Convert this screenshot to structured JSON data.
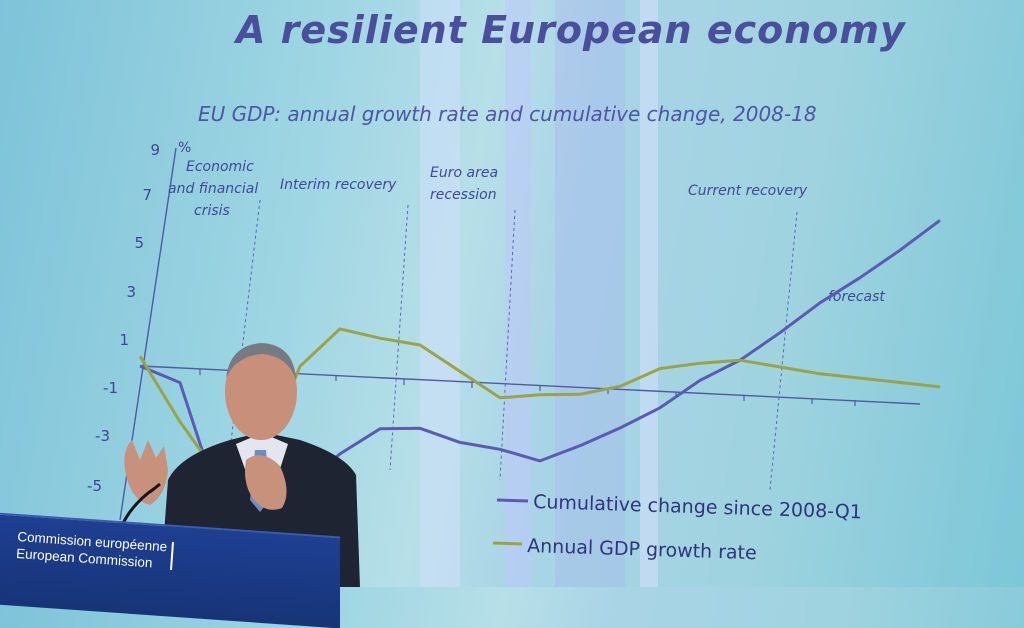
{
  "slide": {
    "title": "A resilient European economy",
    "subtitle": "EU GDP: annual growth rate and cumulative change, 2008-18"
  },
  "chart_data": {
    "type": "line",
    "ylabel": "%",
    "y_ticks": [
      "9",
      "7",
      "5",
      "3",
      "1",
      "-1",
      "-3",
      "-5"
    ],
    "annotations": [
      "Economic and financial crisis",
      "Interim recovery",
      "Euro area recession",
      "Current recovery",
      "forecast"
    ],
    "series": [
      {
        "name": "Cumulative change since 2008-Q1",
        "color": "#5b5bb3",
        "x": [
          0,
          0.5,
          1,
          1.5,
          2,
          2.5,
          3,
          3.5,
          4,
          4.5,
          5,
          5.5,
          6,
          6.5,
          7,
          7.5,
          8,
          8.5,
          9,
          9.5,
          10
        ],
        "values": [
          0,
          -0.6,
          -5.5,
          -5.8,
          -4.6,
          -3.2,
          -2.1,
          -2.0,
          -2.5,
          -2.7,
          -3.1,
          -2.4,
          -1.6,
          -0.7,
          0.5,
          1.4,
          2.6,
          3.9,
          5.0,
          6.2,
          7.5
        ]
      },
      {
        "name": "Annual GDP growth rate",
        "color": "#9aa443",
        "x": [
          0,
          0.5,
          1,
          1.5,
          2,
          2.5,
          3,
          3.5,
          4,
          4.5,
          5,
          5.5,
          6,
          6.5,
          7,
          7.5,
          8,
          8.5,
          9,
          9.5,
          10
        ],
        "values": [
          0.4,
          -2.2,
          -4.4,
          -3.8,
          0.3,
          1.9,
          1.6,
          1.4,
          0.4,
          -0.6,
          -0.4,
          -0.3,
          0.1,
          0.9,
          1.2,
          1.4,
          1.2,
          1.0,
          0.9,
          0.8,
          0.7
        ]
      }
    ]
  },
  "podium": {
    "line1": "Commission européenne",
    "line2": "European Commission"
  }
}
